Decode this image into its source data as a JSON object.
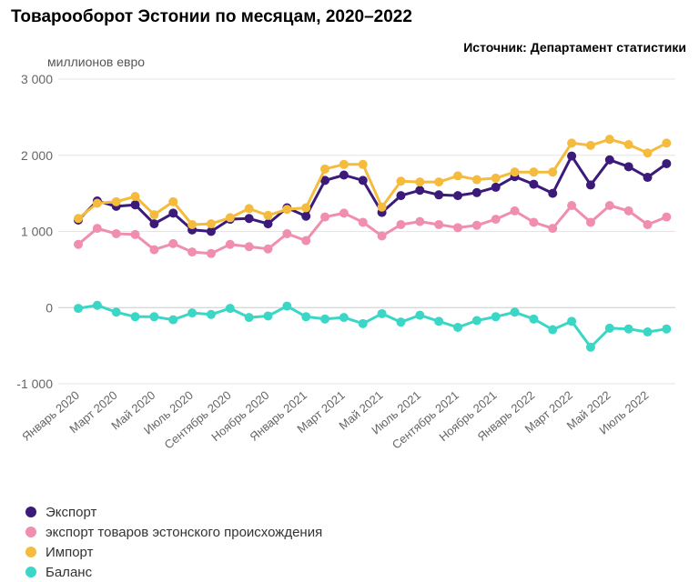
{
  "chart_data": {
    "type": "line",
    "title": "Товарооборот Эстонии по месяцам, 2020–2022",
    "source": "Источник: Департамент статистики",
    "ylabel": "миллионов евро",
    "ylim": [
      -1000,
      3000
    ],
    "yticks": [
      -1000,
      0,
      1000,
      2000,
      3000
    ],
    "ytick_labels": [
      "-1 000",
      "0",
      "1 000",
      "2 000",
      "3 000"
    ],
    "x_tick_labels": [
      "Январь 2020",
      "Март 2020",
      "Май 2020",
      "Июль 2020",
      "Сентябрь 2020",
      "Ноябрь 2020",
      "Январь 2021",
      "Март 2021",
      "Май 2021",
      "Июль 2021",
      "Сентябрь 2021",
      "Ноябрь 2021",
      "Январь 2022",
      "Март 2022",
      "Май 2022",
      "Июль 2022"
    ],
    "grid": true,
    "legend_position": "bottom-left",
    "series": [
      {
        "name": "Экспорт",
        "color": "#3b1a7a",
        "values": [
          1150,
          1400,
          1330,
          1350,
          1100,
          1240,
          1020,
          1000,
          1160,
          1170,
          1100,
          1310,
          1200,
          1670,
          1740,
          1670,
          1250,
          1470,
          1540,
          1480,
          1470,
          1510,
          1580,
          1720,
          1620,
          1500,
          1990,
          1610,
          1940,
          1850,
          1710,
          1890
        ]
      },
      {
        "name": "экспорт товаров эстонского происхождения",
        "color": "#f08eb0",
        "values": [
          830,
          1040,
          970,
          960,
          760,
          840,
          730,
          710,
          830,
          800,
          770,
          970,
          880,
          1190,
          1240,
          1120,
          940,
          1090,
          1130,
          1090,
          1050,
          1080,
          1160,
          1270,
          1120,
          1040,
          1340,
          1120,
          1340,
          1270,
          1090,
          1190
        ]
      },
      {
        "name": "Импорт",
        "color": "#f5bb3d",
        "values": [
          1170,
          1370,
          1390,
          1460,
          1220,
          1390,
          1090,
          1100,
          1180,
          1300,
          1210,
          1290,
          1310,
          1820,
          1880,
          1880,
          1320,
          1660,
          1650,
          1650,
          1730,
          1680,
          1700,
          1780,
          1780,
          1780,
          2160,
          2130,
          2210,
          2140,
          2030,
          2160
        ]
      },
      {
        "name": "Баланс",
        "color": "#3ad6c6",
        "values": [
          -10,
          30,
          -60,
          -120,
          -120,
          -160,
          -70,
          -90,
          -10,
          -130,
          -110,
          20,
          -120,
          -150,
          -130,
          -210,
          -80,
          -190,
          -100,
          -180,
          -260,
          -170,
          -120,
          -60,
          -150,
          -290,
          -180,
          -520,
          -270,
          -280,
          -320,
          -280
        ]
      }
    ]
  }
}
